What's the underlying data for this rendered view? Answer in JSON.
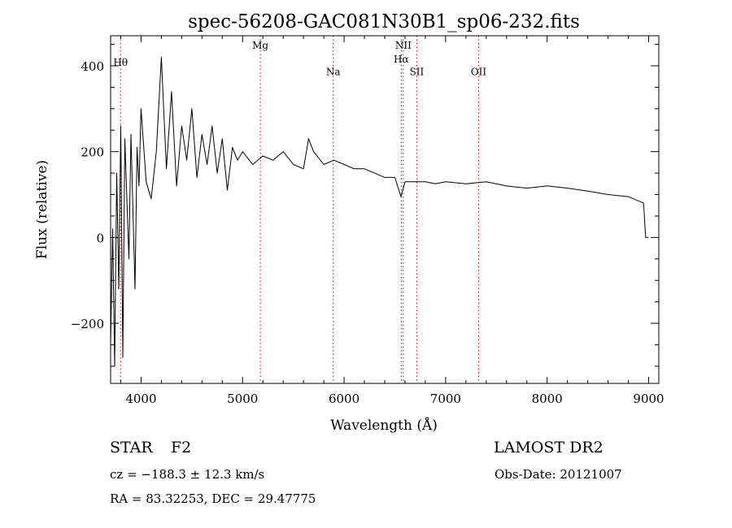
{
  "chart_data": {
    "type": "line",
    "title": "spec-56208-GAC081N30B1_sp06-232.fits",
    "xlabel": "Wavelength (Å)",
    "ylabel": "Flux (relative)",
    "xlim": [
      3700,
      9100
    ],
    "ylim": [
      -340,
      470
    ],
    "x_ticks": [
      4000,
      5000,
      6000,
      7000,
      8000,
      9000
    ],
    "y_ticks": [
      -200,
      0,
      200,
      400
    ],
    "x_tick_labels": [
      "4000",
      "5000",
      "6000",
      "7000",
      "8000",
      "9000"
    ],
    "y_tick_labels": [
      "−200",
      "0",
      "200",
      "400"
    ],
    "grid": false,
    "line_color": "#000000",
    "marker_color": "#cc0000",
    "line_markers": [
      {
        "label": "Hθ",
        "x": 3798,
        "label_y": 400
      },
      {
        "label": "Mg",
        "x": 5175,
        "label_y": 440
      },
      {
        "label": "Na",
        "x": 5893,
        "label_y": 378
      },
      {
        "label": "NII",
        "x": 6583,
        "label_y": 440
      },
      {
        "label": "Hα",
        "x": 6563,
        "label_y": 408
      },
      {
        "label": "SII",
        "x": 6716,
        "label_y": 378
      },
      {
        "label": "OII",
        "x": 7325,
        "label_y": 378
      }
    ],
    "series": [
      {
        "name": "spectrum",
        "x": [
          3700,
          3720,
          3740,
          3760,
          3780,
          3800,
          3820,
          3840,
          3860,
          3880,
          3900,
          3920,
          3940,
          3960,
          3980,
          4000,
          4050,
          4100,
          4150,
          4200,
          4250,
          4300,
          4350,
          4400,
          4450,
          4500,
          4550,
          4600,
          4650,
          4700,
          4750,
          4800,
          4850,
          4900,
          4950,
          5000,
          5100,
          5200,
          5300,
          5400,
          5500,
          5600,
          5650,
          5700,
          5800,
          5900,
          6000,
          6100,
          6200,
          6300,
          6400,
          6500,
          6560,
          6600,
          6700,
          6800,
          6900,
          7000,
          7200,
          7400,
          7600,
          7800,
          8000,
          8200,
          8400,
          8600,
          8800,
          8950,
          8970,
          9000
        ],
        "y": [
          -250,
          20,
          -300,
          150,
          -120,
          260,
          -280,
          230,
          90,
          -50,
          240,
          60,
          -120,
          210,
          120,
          300,
          130,
          90,
          200,
          420,
          160,
          340,
          120,
          260,
          180,
          300,
          140,
          240,
          170,
          260,
          150,
          230,
          110,
          210,
          180,
          200,
          170,
          190,
          180,
          200,
          170,
          160,
          230,
          200,
          170,
          180,
          170,
          160,
          160,
          150,
          140,
          140,
          95,
          130,
          130,
          130,
          125,
          130,
          125,
          130,
          120,
          115,
          120,
          115,
          108,
          100,
          95,
          80,
          0,
          0
        ]
      }
    ]
  },
  "info": {
    "object_type": "STAR",
    "subclass": "F2",
    "survey": "LAMOST DR2",
    "cz": "cz = −188.3 ± 12.3 km/s",
    "obs_date": "Obs-Date: 20121007",
    "coords": "RA =  83.32253, DEC =  29.47775"
  }
}
